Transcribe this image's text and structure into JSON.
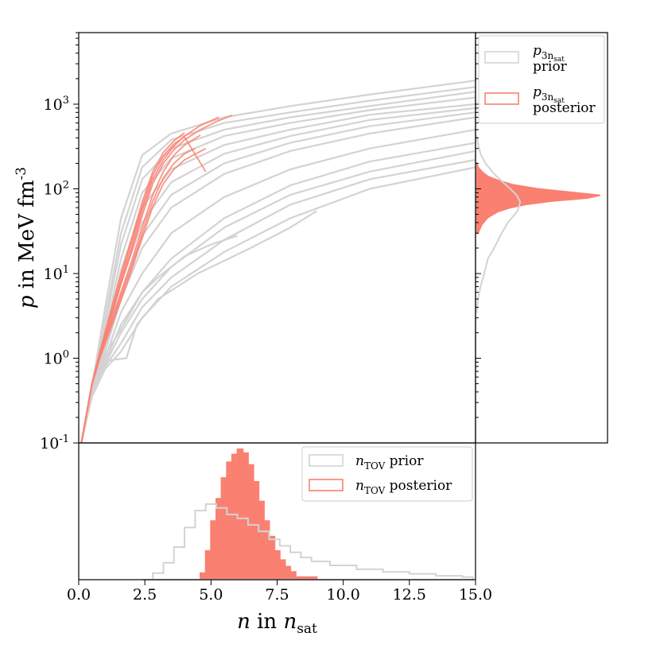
{
  "chart_data": [
    {
      "panel": "main",
      "type": "line",
      "title": "",
      "xlabel": "n in n_sat",
      "ylabel": "p in MeV fm^-3",
      "yscale": "log",
      "xlim": [
        0,
        15
      ],
      "ylim": [
        0.1,
        7000
      ],
      "ytick_labels": [
        "10^-1",
        "10^0",
        "10^1",
        "10^2",
        "10^3"
      ],
      "ytick_values": [
        0.1,
        1,
        10,
        100,
        1000
      ],
      "colors": {
        "prior": "#d3d3d3",
        "posterior": "#fa8072"
      },
      "series": [
        {
          "group": "prior",
          "curves": [
            {
              "x": [
                0.1,
                0.5,
                1.0,
                1.6,
                2.4,
                3.5,
                5.5,
                8.0,
                11.0,
                15.0
              ],
              "y": [
                0.1,
                0.45,
                3.0,
                30,
                180,
                380,
                600,
                800,
                1100,
                1600
              ]
            },
            {
              "x": [
                0.1,
                0.5,
                1.0,
                1.6,
                2.4,
                3.5,
                5.5,
                8.0,
                11.0,
                15.0
              ],
              "y": [
                0.1,
                0.45,
                2.0,
                15,
                90,
                230,
                420,
                600,
                850,
                1200
              ]
            },
            {
              "x": [
                0.1,
                0.5,
                1.0,
                1.6,
                2.4,
                3.5,
                5.5,
                8.0,
                11.0,
                15.0
              ],
              "y": [
                0.1,
                0.42,
                1.5,
                8,
                40,
                120,
                260,
                420,
                650,
                900
              ]
            },
            {
              "x": [
                0.1,
                0.5,
                1.0,
                1.6,
                2.4,
                3.5,
                5.5,
                8.0,
                11.0,
                15.0
              ],
              "y": [
                0.1,
                0.4,
                1.2,
                5,
                20,
                60,
                150,
                280,
                450,
                700
              ]
            },
            {
              "x": [
                0.1,
                0.5,
                1.0,
                1.6,
                2.4,
                3.5,
                5.5,
                8.0,
                11.0,
                15.0
              ],
              "y": [
                0.1,
                0.4,
                1.0,
                3.5,
                10,
                30,
                80,
                170,
                300,
                500
              ]
            },
            {
              "x": [
                0.1,
                0.5,
                1.0,
                1.6,
                2.4,
                3.5,
                5.5,
                8.0,
                11.0,
                15.0
              ],
              "y": [
                0.1,
                0.38,
                0.9,
                2.5,
                6,
                15,
                45,
                110,
                210,
                350
              ]
            },
            {
              "x": [
                0.1,
                0.5,
                1.0,
                1.6,
                2.4,
                3.5,
                5.5,
                8.0,
                11.0,
                15.0
              ],
              "y": [
                0.1,
                0.36,
                0.8,
                1.5,
                4,
                9,
                25,
                65,
                130,
                220
              ]
            },
            {
              "x": [
                0.1,
                0.5,
                1.0,
                1.6,
                2.4,
                3.5,
                5.5,
                8.0,
                11.0,
                15.0
              ],
              "y": [
                0.1,
                0.35,
                0.75,
                1.2,
                3,
                7,
                18,
                45,
                100,
                180
              ]
            },
            {
              "x": [
                0.1,
                0.5,
                1.0,
                1.6,
                2.4,
                3.0,
                4.0,
                5.0,
                6.0
              ],
              "y": [
                0.1,
                0.4,
                1.1,
                2.2,
                6,
                9,
                16,
                22,
                28
              ]
            },
            {
              "x": [
                0.1,
                0.5,
                1.0,
                1.2,
                1.8,
                2.2,
                3.0,
                4.5,
                6.5,
                8.0,
                9.0
              ],
              "y": [
                0.1,
                0.45,
                0.9,
                0.95,
                1.0,
                2.5,
                5,
                10,
                20,
                35,
                55
              ]
            },
            {
              "x": [
                0.1,
                0.5,
                1.0,
                1.6,
                2.4,
                3.5,
                5.5,
                8.0,
                11.0,
                15.0
              ],
              "y": [
                0.1,
                0.46,
                4.0,
                45,
                250,
                450,
                700,
                950,
                1300,
                1900
              ]
            },
            {
              "x": [
                0.1,
                0.5,
                1.0,
                1.6,
                2.4,
                3.5,
                5.5,
                8.0,
                11.0,
                15.0
              ],
              "y": [
                0.1,
                0.44,
                2.5,
                22,
                130,
                300,
                500,
                700,
                950,
                1400
              ]
            },
            {
              "x": [
                0.1,
                0.5,
                1.0,
                1.6,
                2.4,
                3.5,
                5.5,
                8.0,
                11.0,
                15.0
              ],
              "y": [
                0.1,
                0.41,
                1.3,
                6,
                28,
                85,
                200,
                350,
                550,
                800
              ]
            },
            {
              "x": [
                0.1,
                0.5,
                1.0,
                1.6,
                2.4,
                3.5,
                5.5,
                8.0,
                11.0,
                15.0
              ],
              "y": [
                0.1,
                0.37,
                0.85,
                2.0,
                5,
                12,
                35,
                85,
                160,
                280
              ]
            },
            {
              "x": [
                0.1,
                0.5,
                1.0,
                1.6,
                2.4,
                3.5,
                5.5,
                8.0,
                11.0,
                15.0
              ],
              "y": [
                0.1,
                0.43,
                1.8,
                11,
                60,
                170,
                330,
                500,
                750,
                1000
              ]
            }
          ]
        },
        {
          "group": "posterior",
          "curves": [
            {
              "x": [
                0.1,
                0.5,
                0.8,
                1.2,
                1.6,
                2.0,
                2.4,
                2.8,
                3.2,
                3.6,
                4.0,
                4.6,
                5.3
              ],
              "y": [
                0.1,
                0.5,
                1.1,
                3.0,
                8,
                20,
                55,
                130,
                220,
                320,
                420,
                560,
                700
              ]
            },
            {
              "x": [
                0.1,
                0.5,
                0.8,
                1.2,
                1.6,
                2.0,
                2.4,
                2.8,
                3.2,
                3.6,
                4.0,
                4.6
              ],
              "y": [
                0.1,
                0.5,
                1.1,
                2.6,
                6,
                14,
                35,
                85,
                160,
                250,
                330,
                430
              ]
            },
            {
              "x": [
                0.1,
                0.5,
                0.8,
                1.2,
                1.6,
                2.0,
                2.4,
                2.8,
                3.2,
                3.6,
                4.0
              ],
              "y": [
                0.1,
                0.5,
                1.2,
                3.5,
                10,
                26,
                70,
                160,
                270,
                370,
                460
              ]
            },
            {
              "x": [
                0.1,
                0.5,
                0.8,
                1.2,
                1.6,
                2.0,
                2.4,
                2.8,
                3.2,
                3.6,
                4.0,
                4.8
              ],
              "y": [
                0.1,
                0.48,
                1.0,
                2.2,
                4.8,
                11,
                26,
                62,
                115,
                170,
                220,
                300
              ]
            },
            {
              "x": [
                0.1,
                0.5,
                0.8,
                1.2,
                1.6,
                2.0,
                2.4,
                2.8,
                3.2,
                3.6,
                4.0,
                4.6,
                5.2,
                5.8
              ],
              "y": [
                0.1,
                0.5,
                1.1,
                2.9,
                7.5,
                18,
                48,
                115,
                200,
                290,
                380,
                500,
                620,
                740
              ]
            },
            {
              "x": [
                0.1,
                0.5,
                0.8,
                1.2,
                1.6,
                2.0,
                2.4,
                2.8,
                3.2,
                3.6,
                4.0,
                4.4
              ],
              "y": [
                0.1,
                0.5,
                1.05,
                2.4,
                5.4,
                12,
                30,
                72,
                135,
                200,
                260,
                300
              ]
            },
            {
              "x": [
                0.1,
                0.5,
                0.8,
                1.2,
                1.6,
                2.0,
                2.4,
                2.8,
                3.2,
                3.6,
                4.0,
                4.8
              ],
              "y": [
                0.1,
                0.5,
                1.15,
                3.2,
                9,
                23,
                62,
                145,
                245,
                340,
                410,
                160
              ]
            }
          ]
        }
      ]
    },
    {
      "panel": "right",
      "type": "histogram",
      "orientation": "horizontal",
      "yscale": "log",
      "ylim": [
        0.1,
        7000
      ],
      "legend_position": "top",
      "legend": [
        {
          "symbol": "p",
          "subscript": "3n",
          "subsubscript": "sat",
          "label": "prior",
          "style": "outline",
          "color": "#d3d3d3"
        },
        {
          "symbol": "p",
          "subscript": "3n",
          "subsubscript": "sat",
          "label": "posterior",
          "style": "outline",
          "color": "#fa8072"
        }
      ],
      "prior": {
        "y": [
          3.5,
          5,
          7,
          10,
          15,
          20,
          28,
          40,
          55,
          70,
          85,
          100,
          120,
          150,
          200,
          260,
          340,
          420
        ],
        "density": [
          0.01,
          0.02,
          0.04,
          0.07,
          0.1,
          0.15,
          0.2,
          0.26,
          0.34,
          0.36,
          0.33,
          0.28,
          0.22,
          0.15,
          0.08,
          0.04,
          0.02,
          0.01
        ]
      },
      "posterior": {
        "y": [
          30,
          38,
          46,
          54,
          60,
          66,
          72,
          78,
          84,
          90,
          100,
          112,
          126,
          140,
          160,
          180,
          200
        ],
        "density": [
          0.02,
          0.05,
          0.1,
          0.18,
          0.28,
          0.42,
          0.62,
          0.9,
          1.0,
          0.8,
          0.5,
          0.3,
          0.18,
          0.1,
          0.05,
          0.02,
          0.01
        ]
      }
    },
    {
      "panel": "bottom",
      "type": "histogram",
      "orientation": "vertical",
      "xlim": [
        0,
        15
      ],
      "xtick_labels": [
        "0.0",
        "2.5",
        "5.0",
        "7.5",
        "10.0",
        "12.5",
        "15.0"
      ],
      "xtick_values": [
        0,
        2.5,
        5,
        7.5,
        10,
        12.5,
        15
      ],
      "legend_position": "top-right",
      "legend": [
        {
          "symbol": "n",
          "subscript": "TOV",
          "label": "prior",
          "style": "outline",
          "color": "#d3d3d3"
        },
        {
          "symbol": "n",
          "subscript": "TOV",
          "label": "posterior",
          "style": "outline",
          "color": "#fa8072"
        }
      ],
      "prior": {
        "x": [
          2.4,
          2.8,
          3.2,
          3.6,
          4.0,
          4.4,
          4.8,
          5.2,
          5.6,
          6.0,
          6.4,
          6.8,
          7.2,
          7.6,
          8.0,
          8.4,
          8.8,
          9.5,
          10.5,
          11.5,
          12.5,
          13.5,
          14.5
        ],
        "density": [
          0.0,
          0.05,
          0.13,
          0.25,
          0.4,
          0.53,
          0.58,
          0.55,
          0.5,
          0.47,
          0.42,
          0.37,
          0.31,
          0.26,
          0.21,
          0.17,
          0.14,
          0.11,
          0.08,
          0.06,
          0.045,
          0.03,
          0.02
        ]
      },
      "posterior": {
        "x": [
          4.3,
          4.6,
          4.8,
          5.0,
          5.2,
          5.4,
          5.6,
          5.8,
          6.0,
          6.2,
          6.4,
          6.6,
          6.8,
          7.0,
          7.2,
          7.4,
          7.6,
          7.8,
          8.0,
          8.2,
          9.0,
          11.0,
          13.0,
          14.5
        ],
        "density": [
          0.0,
          0.05,
          0.22,
          0.45,
          0.62,
          0.78,
          0.9,
          0.96,
          1.0,
          0.97,
          0.88,
          0.75,
          0.6,
          0.45,
          0.33,
          0.22,
          0.15,
          0.1,
          0.06,
          0.02,
          0.0,
          0.0,
          0.0,
          0.0
        ]
      }
    }
  ]
}
